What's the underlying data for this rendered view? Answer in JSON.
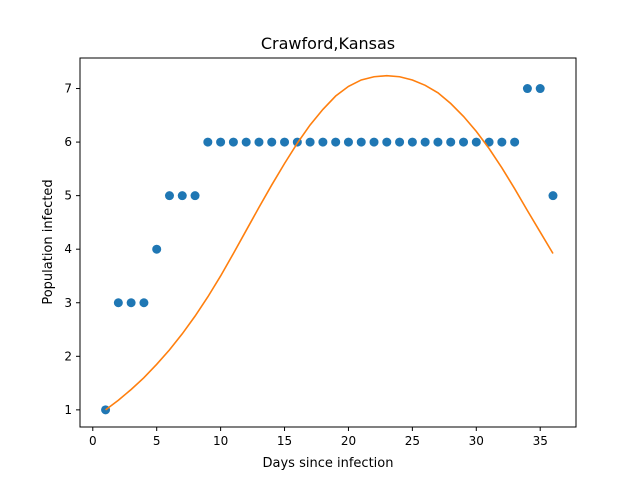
{
  "chart_data": {
    "type": "scatter",
    "title": "Crawford,Kansas",
    "xlabel": "Days since infection",
    "ylabel": "Population infected",
    "xlim": [
      -1,
      37.8
    ],
    "ylim": [
      0.68,
      7.57
    ],
    "xticks": [
      0,
      5,
      10,
      15,
      20,
      25,
      30,
      35
    ],
    "yticks": [
      1,
      2,
      3,
      4,
      5,
      6,
      7
    ],
    "grid": false,
    "series": [
      {
        "kind": "scatter",
        "color": "#1f77b4",
        "x": [
          1,
          2,
          3,
          4,
          5,
          6,
          7,
          8,
          9,
          10,
          11,
          12,
          13,
          14,
          15,
          16,
          17,
          18,
          19,
          20,
          21,
          22,
          23,
          24,
          25,
          26,
          27,
          28,
          29,
          30,
          31,
          32,
          33,
          34,
          35,
          36
        ],
        "y": [
          1,
          3,
          3,
          3,
          4,
          5,
          5,
          5,
          6,
          6,
          6,
          6,
          6,
          6,
          6,
          6,
          6,
          6,
          6,
          6,
          6,
          6,
          6,
          6,
          6,
          6,
          6,
          6,
          6,
          6,
          6,
          6,
          6,
          7,
          7,
          5
        ]
      },
      {
        "kind": "line",
        "color": "#ff7f0e",
        "x": [
          1,
          2,
          3,
          4,
          5,
          6,
          7,
          8,
          9,
          10,
          11,
          12,
          13,
          14,
          15,
          16,
          17,
          18,
          19,
          20,
          21,
          22,
          23,
          24,
          25,
          26,
          27,
          28,
          29,
          30,
          31,
          32,
          33,
          34,
          35,
          36
        ],
        "y": [
          1.0,
          1.18,
          1.38,
          1.6,
          1.85,
          2.12,
          2.42,
          2.75,
          3.11,
          3.5,
          3.92,
          4.35,
          4.78,
          5.2,
          5.6,
          5.98,
          6.32,
          6.61,
          6.86,
          7.04,
          7.16,
          7.22,
          7.24,
          7.22,
          7.16,
          7.06,
          6.92,
          6.72,
          6.48,
          6.2,
          5.88,
          5.52,
          5.13,
          4.72,
          4.32,
          3.92
        ]
      }
    ]
  }
}
